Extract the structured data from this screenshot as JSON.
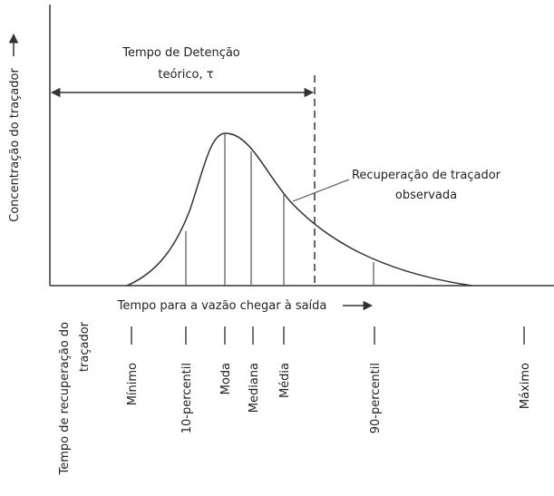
{
  "y_axis_label": "Concentração do traçador",
  "theoretical_time": {
    "line1": "Tempo de Detenção",
    "line2": "teórico, τ"
  },
  "curve_label": {
    "line1": "Recuperação de traçador",
    "line2": "observada"
  },
  "x_axis_label": "Tempo para a vazão chegar à saída",
  "recovery_time": {
    "line1": "Tempo de recuperação do",
    "line2": "traçador"
  },
  "markers": [
    "Mínimo",
    "10-percentil",
    "Moda",
    "Mediana",
    "Média",
    "90-percentil",
    "Máximo"
  ]
}
